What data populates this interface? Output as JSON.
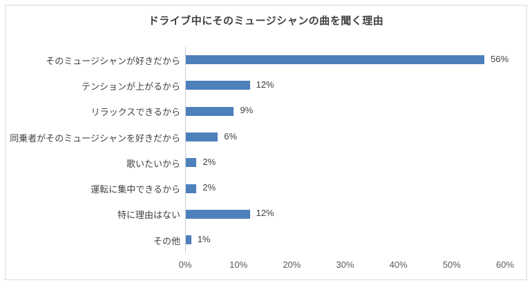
{
  "chart_data": {
    "type": "bar",
    "orientation": "horizontal",
    "title": "ドライブ中にそのミュージシャンの曲を聞く理由",
    "categories": [
      "そのミュージシャンが好きだから",
      "テンションが上がるから",
      "リラックスできるから",
      "同乗者がそのミュージシャンを好きだから",
      "歌いたいから",
      "運転に集中できるから",
      "特に理由はない",
      "その他"
    ],
    "values": [
      56,
      12,
      9,
      6,
      2,
      2,
      12,
      1
    ],
    "value_labels": [
      "56%",
      "12%",
      "9%",
      "6%",
      "2%",
      "2%",
      "12%",
      "1%"
    ],
    "x_ticks": [
      "0%",
      "10%",
      "20%",
      "30%",
      "40%",
      "50%",
      "60%"
    ],
    "x_tick_values": [
      0,
      10,
      20,
      30,
      40,
      50,
      60
    ],
    "xlim": [
      0,
      60
    ],
    "xlabel": "",
    "ylabel": "",
    "grid": false,
    "legend_position": "none",
    "colors": {
      "bar": "#4E80BC",
      "axis_line": "#C9CDD2",
      "title_text": "#404040",
      "label_text": "#404040",
      "tick_text": "#595959",
      "frame_border": "#D9D9D9",
      "background": "#FFFFFF"
    }
  }
}
